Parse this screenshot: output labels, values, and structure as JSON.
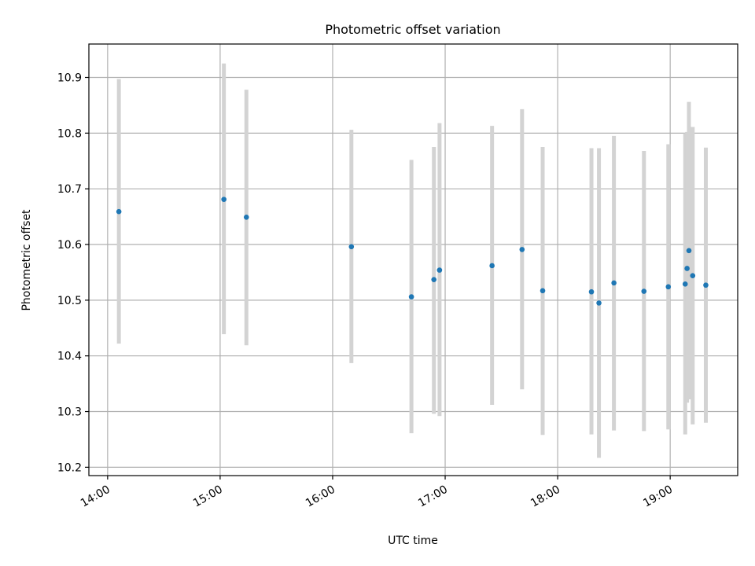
{
  "chart_data": {
    "type": "scatter",
    "title": "Photometric offset variation",
    "xlabel": "UTC time",
    "ylabel": "Photometric offset",
    "x_ticks": [
      "14:00",
      "15:00",
      "16:00",
      "17:00",
      "18:00",
      "19:00"
    ],
    "y_ticks": [
      "10.2",
      "10.3",
      "10.4",
      "10.5",
      "10.6",
      "10.7",
      "10.8",
      "10.9"
    ],
    "xlim": [
      "13:50",
      "19:36"
    ],
    "ylim": [
      10.185,
      10.96
    ],
    "grid": true,
    "marker_color": "#1f77b4",
    "errorbar_color": "#d3d3d3",
    "points": [
      {
        "time": "14:06",
        "y": 10.659,
        "lo": 10.422,
        "hi": 10.897
      },
      {
        "time": "15:02",
        "y": 10.681,
        "lo": 10.439,
        "hi": 10.925
      },
      {
        "time": "15:14",
        "y": 10.649,
        "lo": 10.419,
        "hi": 10.878
      },
      {
        "time": "16:10",
        "y": 10.596,
        "lo": 10.387,
        "hi": 10.806
      },
      {
        "time": "16:42",
        "y": 10.506,
        "lo": 10.261,
        "hi": 10.752
      },
      {
        "time": "16:54",
        "y": 10.537,
        "lo": 10.296,
        "hi": 10.775
      },
      {
        "time": "16:57",
        "y": 10.554,
        "lo": 10.292,
        "hi": 10.818
      },
      {
        "time": "17:25",
        "y": 10.562,
        "lo": 10.312,
        "hi": 10.813
      },
      {
        "time": "17:41",
        "y": 10.591,
        "lo": 10.34,
        "hi": 10.843
      },
      {
        "time": "17:52",
        "y": 10.517,
        "lo": 10.258,
        "hi": 10.775
      },
      {
        "time": "18:18",
        "y": 10.515,
        "lo": 10.259,
        "hi": 10.773
      },
      {
        "time": "18:22",
        "y": 10.495,
        "lo": 10.217,
        "hi": 10.773
      },
      {
        "time": "18:30",
        "y": 10.531,
        "lo": 10.266,
        "hi": 10.795
      },
      {
        "time": "18:46",
        "y": 10.516,
        "lo": 10.265,
        "hi": 10.768
      },
      {
        "time": "18:59",
        "y": 10.524,
        "lo": 10.268,
        "hi": 10.78
      },
      {
        "time": "19:08",
        "y": 10.529,
        "lo": 10.259,
        "hi": 10.8
      },
      {
        "time": "19:09",
        "y": 10.557,
        "lo": 10.316,
        "hi": 10.802
      },
      {
        "time": "19:10",
        "y": 10.589,
        "lo": 10.322,
        "hi": 10.856
      },
      {
        "time": "19:12",
        "y": 10.544,
        "lo": 10.277,
        "hi": 10.811
      },
      {
        "time": "19:19",
        "y": 10.527,
        "lo": 10.28,
        "hi": 10.774
      }
    ]
  }
}
